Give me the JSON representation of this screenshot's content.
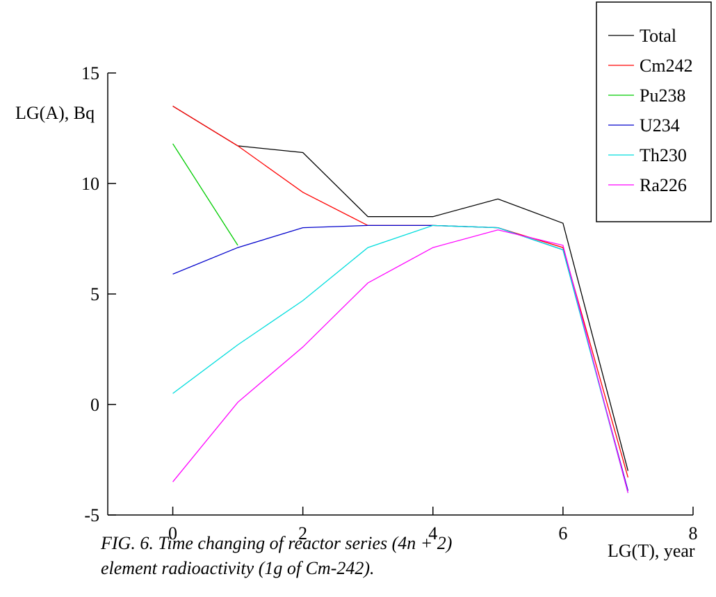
{
  "chart_data": {
    "type": "line",
    "ylabel": "LG(A), Bq",
    "xlabel": "LG(T), year",
    "xlim": [
      -1,
      8
    ],
    "ylim": [
      -5,
      15
    ],
    "xticks": [
      0,
      2,
      4,
      6,
      8
    ],
    "yticks": [
      15,
      10,
      5,
      0,
      -5
    ],
    "grid": false,
    "legend_position": "top-right",
    "series": [
      {
        "name": "Total",
        "color": "#000000",
        "x": [
          0,
          1,
          2,
          3,
          4,
          5,
          6,
          7
        ],
        "y": [
          13.5,
          11.7,
          11.4,
          8.5,
          8.5,
          9.3,
          8.2,
          -3.0
        ]
      },
      {
        "name": "Cm242",
        "color": "#ff0000",
        "x": [
          0,
          1,
          2,
          3,
          4,
          5,
          6,
          7
        ],
        "y": [
          13.5,
          11.7,
          9.6,
          8.1,
          8.1,
          8.0,
          7.1,
          -3.3
        ]
      },
      {
        "name": "Pu238",
        "color": "#00cc00",
        "x": [
          0,
          1
        ],
        "y": [
          11.8,
          7.2
        ]
      },
      {
        "name": "U234",
        "color": "#0000cc",
        "x": [
          0,
          1,
          2,
          3,
          4,
          5,
          6,
          7
        ],
        "y": [
          5.9,
          7.1,
          8.0,
          8.1,
          8.1,
          8.0,
          7.0,
          -3.9
        ]
      },
      {
        "name": "Th230",
        "color": "#00dddd",
        "x": [
          0,
          1,
          2,
          3,
          4,
          5,
          6,
          7
        ],
        "y": [
          0.5,
          2.7,
          4.7,
          7.1,
          8.1,
          8.0,
          7.0,
          -4.0
        ]
      },
      {
        "name": "Ra226",
        "color": "#ff00ff",
        "x": [
          0,
          1,
          2,
          3,
          4,
          5,
          6,
          7
        ],
        "y": [
          -3.5,
          0.1,
          2.6,
          5.5,
          7.1,
          7.9,
          7.2,
          -4.0
        ]
      }
    ]
  },
  "caption": {
    "line1": "FIG. 6. Time changing of reactor series (4n + 2)",
    "line2": "element radioactivity (1g of Cm-242)."
  }
}
